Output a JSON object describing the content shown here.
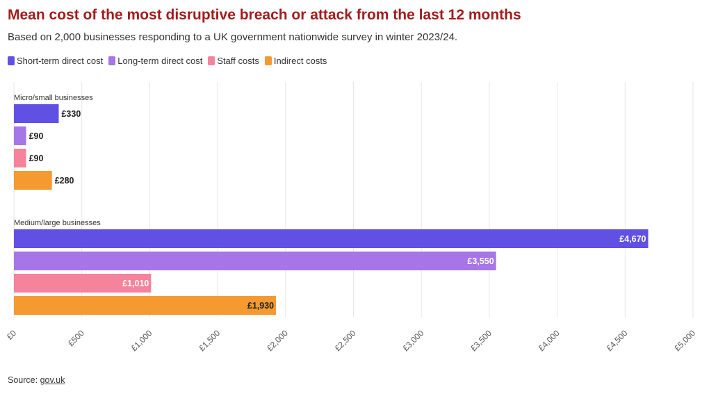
{
  "header": {
    "title": "Mean cost of the most disruptive breach or attack from the last 12 months",
    "subtitle": "Based on 2,000 businesses responding to a UK government nationwide survey in winter 2023/24."
  },
  "legend": [
    {
      "label": "Short-term direct cost",
      "color": "#6150e4"
    },
    {
      "label": "Long-term direct cost",
      "color": "#a675e8"
    },
    {
      "label": "Staff costs",
      "color": "#f5839b"
    },
    {
      "label": "Indirect costs",
      "color": "#f59a30"
    }
  ],
  "footer": {
    "source_prefix": "Source: ",
    "source_link": "gov.uk"
  },
  "chart_data": {
    "type": "bar",
    "orientation": "horizontal",
    "title": "Mean cost of the most disruptive breach or attack from the last 12 months",
    "xlim": [
      0,
      5000
    ],
    "x_ticks": [
      0,
      500,
      1000,
      1500,
      2000,
      2500,
      3000,
      3500,
      4000,
      4500,
      5000
    ],
    "x_tick_labels": [
      "£0",
      "£500",
      "£1,000",
      "£1,500",
      "£2,000",
      "£2,500",
      "£3,000",
      "£3,500",
      "£4,000",
      "£4,500",
      "£5,000"
    ],
    "grid": true,
    "categories": [
      "Short-term direct cost",
      "Long-term direct cost",
      "Staff costs",
      "Indirect costs"
    ],
    "groups": [
      {
        "name": "Micro/small businesses",
        "values": [
          330,
          90,
          90,
          280
        ],
        "labels": [
          "£330",
          "£90",
          "£90",
          "£280"
        ]
      },
      {
        "name": "Medium/large businesses",
        "values": [
          4670,
          3550,
          1010,
          1930
        ],
        "labels": [
          "£4,670",
          "£3,550",
          "£1,010",
          "£1,930"
        ]
      }
    ],
    "colors": [
      "#6150e4",
      "#a675e8",
      "#f5839b",
      "#f59a30"
    ]
  }
}
